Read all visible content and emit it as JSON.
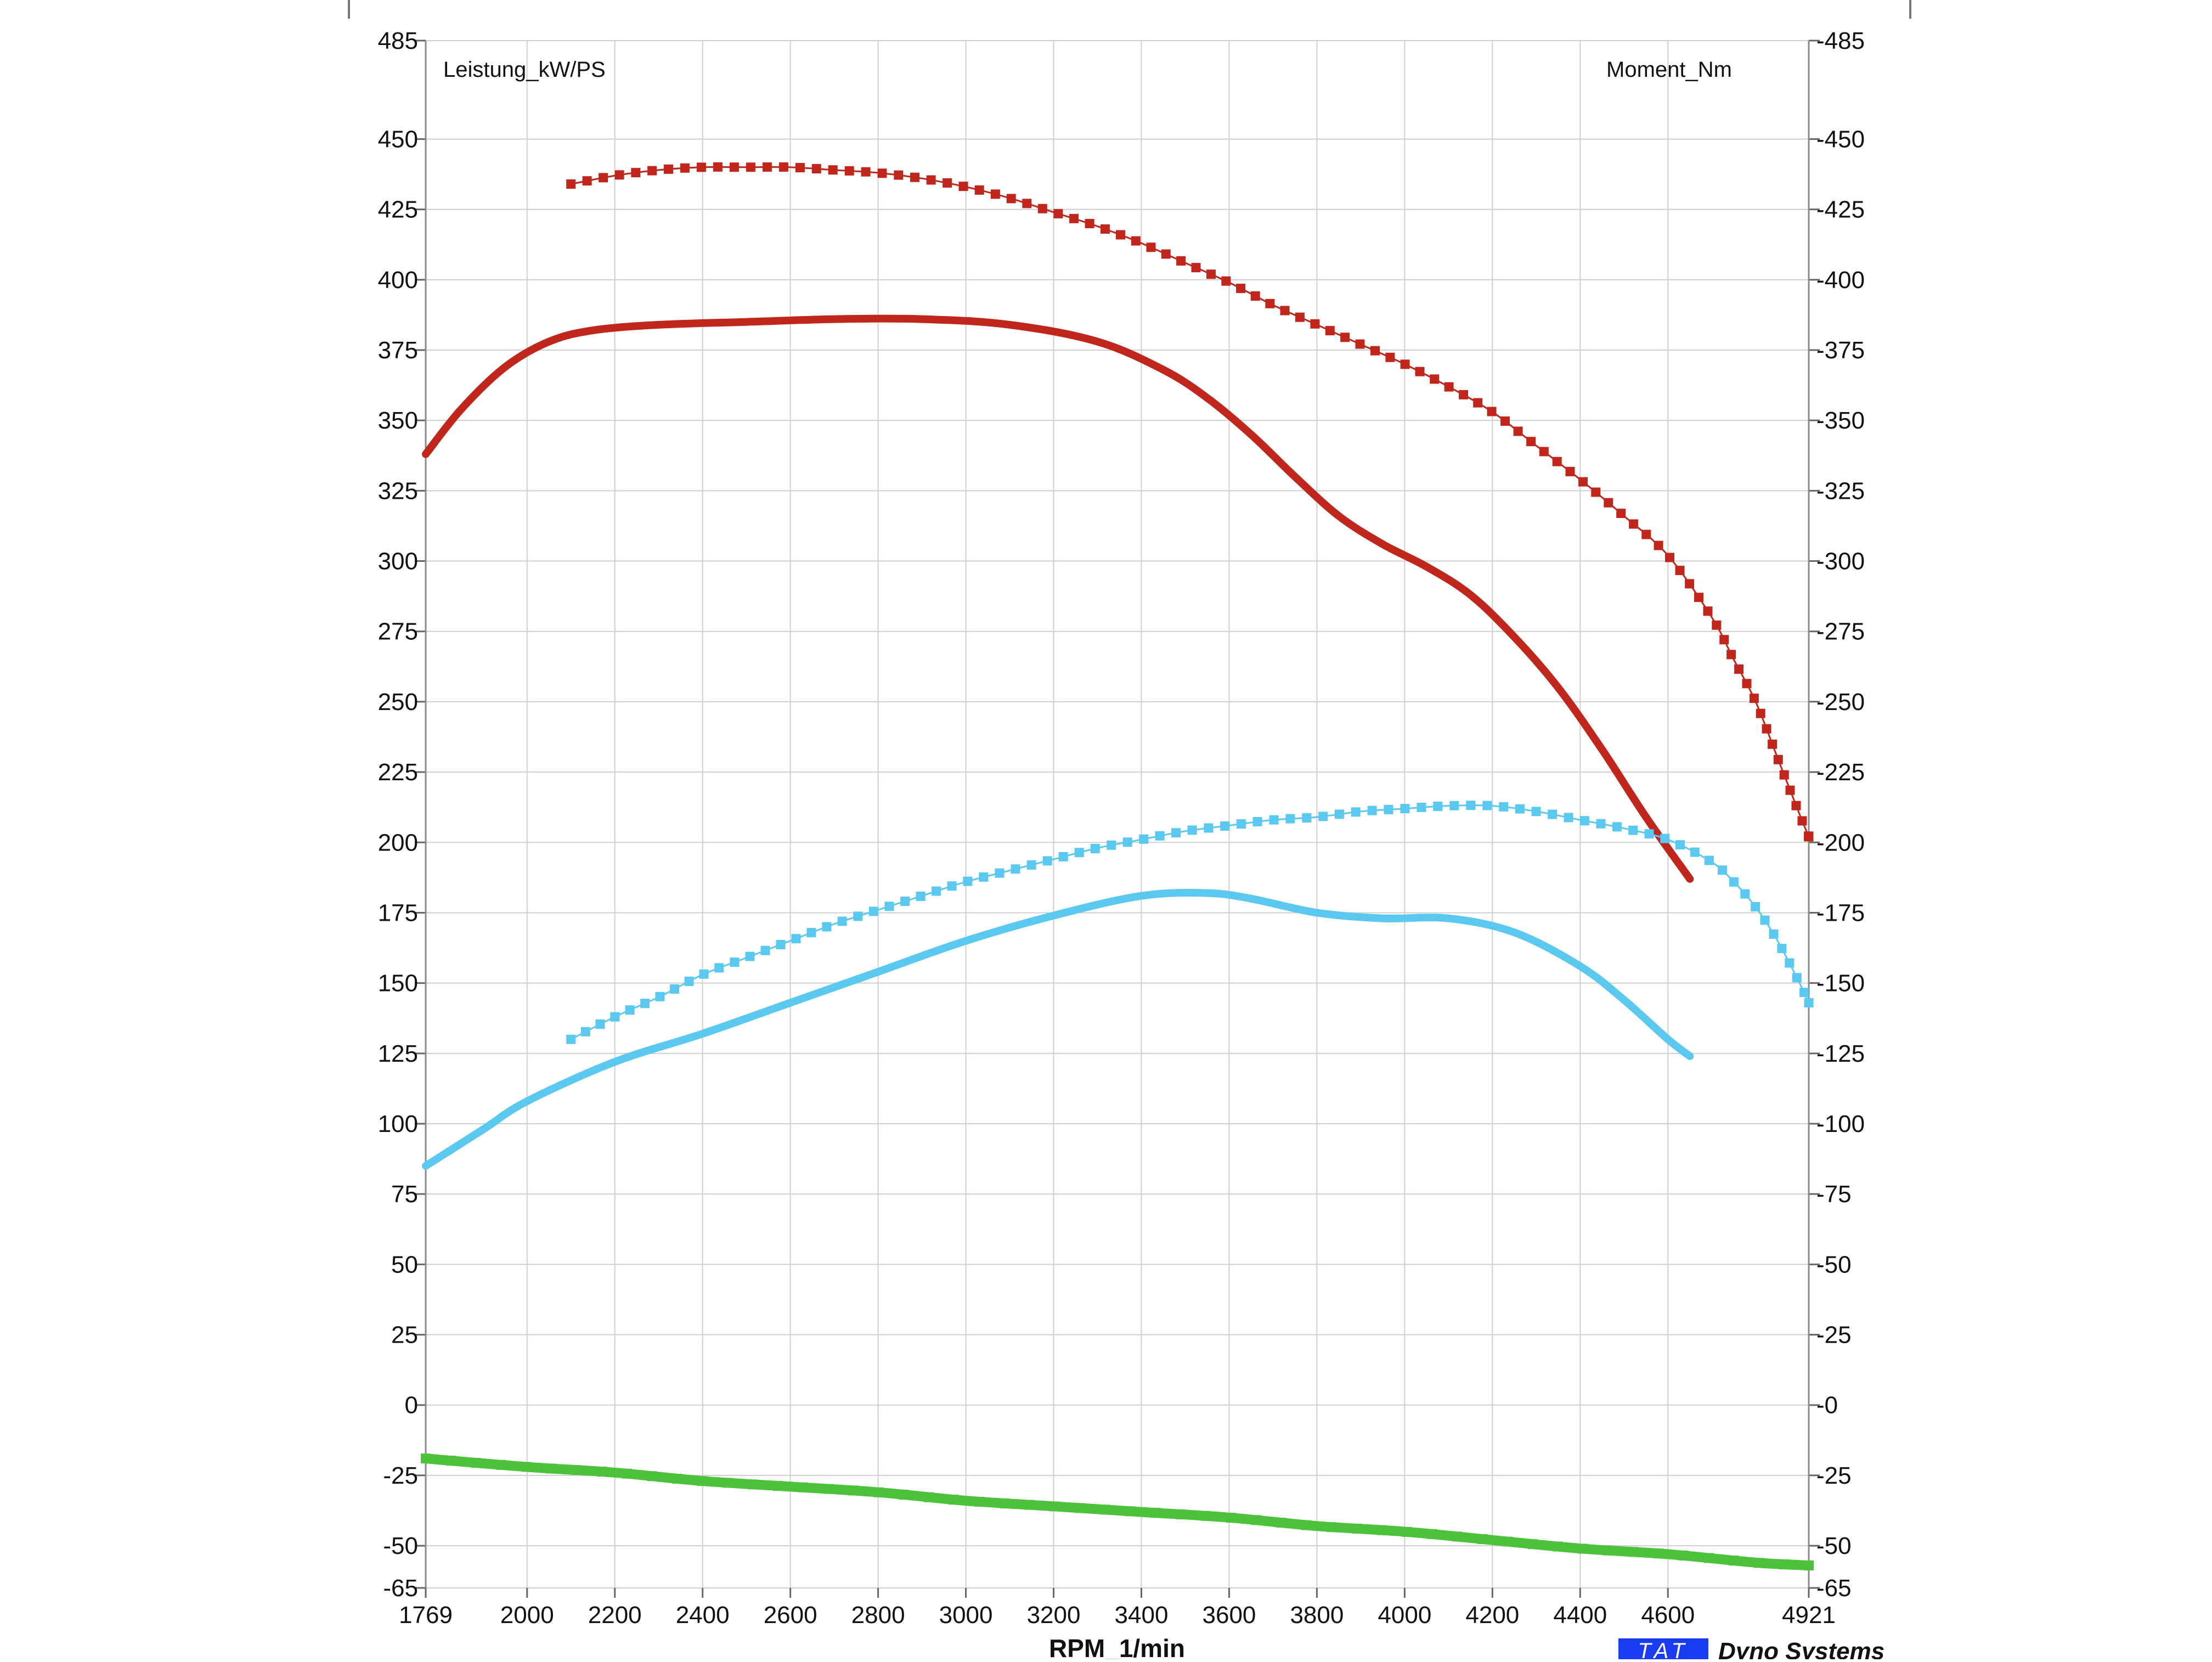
{
  "chart_data": {
    "type": "line",
    "left_axis_label": "Leistung_kW/PS",
    "right_axis_label": "Moment_Nm",
    "xlabel": "RPM_1/min",
    "xlim": [
      1769,
      4921
    ],
    "ylim": [
      -65,
      485
    ],
    "x_ticks": [
      "1769",
      "2000",
      "2200",
      "2400",
      "2600",
      "2800",
      "3000",
      "3200",
      "3400",
      "3600",
      "3800",
      "4000",
      "4200",
      "4400",
      "4600",
      "4921"
    ],
    "y_ticks": [
      "485",
      "450",
      "425",
      "400",
      "375",
      "350",
      "325",
      "300",
      "275",
      "250",
      "225",
      "200",
      "175",
      "150",
      "125",
      "100",
      "75",
      "50",
      "25",
      "0",
      "-25",
      "-50",
      "-65"
    ],
    "grid": true,
    "colors": {
      "torque": "#c0261c",
      "power": "#5bc8f0",
      "loss": "#4cc23a",
      "grid": "#cfcfcf",
      "brand_box": "#1a3cf0"
    },
    "series": [
      {
        "color": "#c0261c",
        "style": "solid",
        "points": [
          [
            1769,
            338
          ],
          [
            1850,
            354
          ],
          [
            1950,
            369
          ],
          [
            2050,
            378
          ],
          [
            2150,
            382
          ],
          [
            2300,
            384
          ],
          [
            2500,
            385
          ],
          [
            2700,
            386
          ],
          [
            2900,
            386
          ],
          [
            3100,
            384
          ],
          [
            3300,
            378
          ],
          [
            3450,
            368
          ],
          [
            3550,
            358
          ],
          [
            3650,
            345
          ],
          [
            3750,
            330
          ],
          [
            3850,
            316
          ],
          [
            3950,
            306
          ],
          [
            4050,
            298
          ],
          [
            4150,
            288
          ],
          [
            4250,
            273
          ],
          [
            4350,
            255
          ],
          [
            4450,
            233
          ],
          [
            4550,
            209
          ],
          [
            4650,
            187
          ]
        ]
      },
      {
        "color": "#c0261c",
        "style": "markers",
        "points": [
          [
            2100,
            434
          ],
          [
            2200,
            437
          ],
          [
            2300,
            439
          ],
          [
            2400,
            440
          ],
          [
            2500,
            440
          ],
          [
            2600,
            440
          ],
          [
            2700,
            439
          ],
          [
            2800,
            438
          ],
          [
            2900,
            436
          ],
          [
            3000,
            433
          ],
          [
            3100,
            429
          ],
          [
            3200,
            424
          ],
          [
            3300,
            419
          ],
          [
            3400,
            413
          ],
          [
            3500,
            406
          ],
          [
            3600,
            399
          ],
          [
            3700,
            391
          ],
          [
            3800,
            384
          ],
          [
            3900,
            377
          ],
          [
            4000,
            370
          ],
          [
            4100,
            362
          ],
          [
            4200,
            353
          ],
          [
            4300,
            341
          ],
          [
            4400,
            329
          ],
          [
            4500,
            316
          ],
          [
            4600,
            302
          ],
          [
            4700,
            280
          ],
          [
            4750,
            265
          ],
          [
            4800,
            250
          ],
          [
            4850,
            230
          ],
          [
            4900,
            210
          ],
          [
            4921,
            202
          ]
        ]
      },
      {
        "color": "#5bc8f0",
        "style": "solid",
        "points": [
          [
            1769,
            85
          ],
          [
            1900,
            98
          ],
          [
            2000,
            108
          ],
          [
            2200,
            122
          ],
          [
            2400,
            132
          ],
          [
            2600,
            143
          ],
          [
            2800,
            154
          ],
          [
            3000,
            165
          ],
          [
            3200,
            174
          ],
          [
            3400,
            181
          ],
          [
            3550,
            182
          ],
          [
            3650,
            180
          ],
          [
            3800,
            175
          ],
          [
            3950,
            173
          ],
          [
            4100,
            173
          ],
          [
            4250,
            168
          ],
          [
            4400,
            156
          ],
          [
            4500,
            144
          ],
          [
            4600,
            130
          ],
          [
            4650,
            124
          ]
        ]
      },
      {
        "color": "#5bc8f0",
        "style": "markers",
        "points": [
          [
            2100,
            130
          ],
          [
            2200,
            138
          ],
          [
            2300,
            145
          ],
          [
            2400,
            153
          ],
          [
            2500,
            159
          ],
          [
            2600,
            165
          ],
          [
            2700,
            171
          ],
          [
            2800,
            176
          ],
          [
            2900,
            181
          ],
          [
            3000,
            186
          ],
          [
            3100,
            190
          ],
          [
            3200,
            194
          ],
          [
            3300,
            198
          ],
          [
            3400,
            201
          ],
          [
            3500,
            204
          ],
          [
            3600,
            206
          ],
          [
            3700,
            208
          ],
          [
            3800,
            209
          ],
          [
            3900,
            211
          ],
          [
            4000,
            212
          ],
          [
            4100,
            213
          ],
          [
            4200,
            213
          ],
          [
            4300,
            211
          ],
          [
            4400,
            208
          ],
          [
            4500,
            205
          ],
          [
            4600,
            201
          ],
          [
            4700,
            193
          ],
          [
            4750,
            186
          ],
          [
            4800,
            177
          ],
          [
            4850,
            165
          ],
          [
            4900,
            150
          ],
          [
            4921,
            143
          ]
        ]
      },
      {
        "color": "#4cc23a",
        "style": "markers",
        "points": [
          [
            1769,
            -19
          ],
          [
            2000,
            -22
          ],
          [
            2200,
            -24
          ],
          [
            2400,
            -27
          ],
          [
            2600,
            -29
          ],
          [
            2800,
            -31
          ],
          [
            3000,
            -34
          ],
          [
            3200,
            -36
          ],
          [
            3400,
            -38
          ],
          [
            3600,
            -40
          ],
          [
            3800,
            -43
          ],
          [
            4000,
            -45
          ],
          [
            4200,
            -48
          ],
          [
            4400,
            -51
          ],
          [
            4600,
            -53
          ],
          [
            4800,
            -56
          ],
          [
            4921,
            -57
          ]
        ]
      }
    ]
  },
  "footer": {
    "brand_box": "TAT",
    "brand_text": "Dyno Systems"
  }
}
